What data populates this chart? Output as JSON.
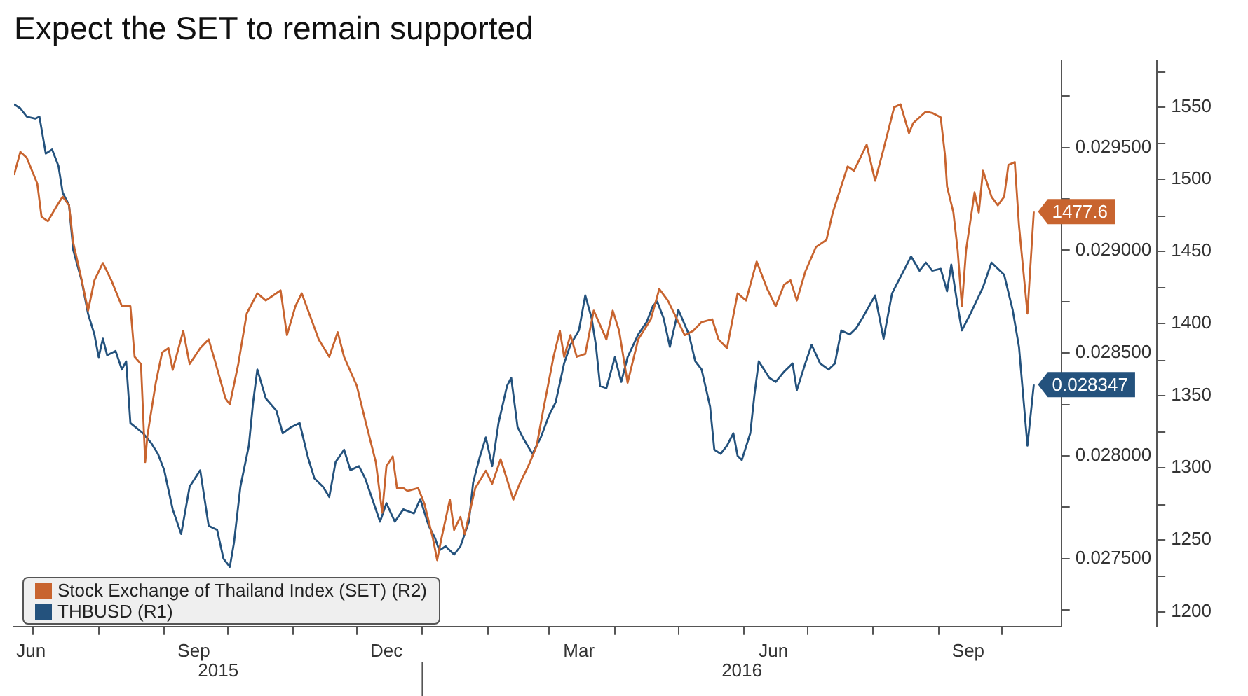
{
  "chart_data": {
    "type": "line",
    "title": "Expect the SET to remain supported",
    "legend": "bottom left",
    "grid": false,
    "marker": "none",
    "line_style": "solid",
    "series": [
      {
        "name": "Stock Exchange of Thailand Index (SET) (R2)",
        "color": "#c8642f",
        "axis": "y2",
        "x": [
          "2015-06-22",
          "2015-06-25",
          "2015-06-28",
          "2015-07-03",
          "2015-07-05",
          "2015-07-08",
          "2015-07-12",
          "2015-07-15",
          "2015-07-18",
          "2015-07-20",
          "2015-07-24",
          "2015-07-27",
          "2015-07-30",
          "2015-08-03",
          "2015-08-07",
          "2015-08-12",
          "2015-08-16",
          "2015-08-18",
          "2015-08-21",
          "2015-08-23",
          "2015-08-24",
          "2015-08-28",
          "2015-08-31",
          "2015-09-03",
          "2015-09-05",
          "2015-09-10",
          "2015-09-13",
          "2015-09-18",
          "2015-09-22",
          "2015-09-25",
          "2015-09-30",
          "2015-10-02",
          "2015-10-06",
          "2015-10-10",
          "2015-10-15",
          "2015-10-19",
          "2015-10-26",
          "2015-10-29",
          "2015-11-02",
          "2015-11-05",
          "2015-11-08",
          "2015-11-13",
          "2015-11-18",
          "2015-11-22",
          "2015-11-25",
          "2015-12-01",
          "2015-12-05",
          "2015-12-10",
          "2015-12-13",
          "2015-12-15",
          "2015-12-18",
          "2015-12-20",
          "2015-12-23",
          "2015-12-25",
          "2015-12-30",
          "2016-01-02",
          "2016-01-06",
          "2016-01-08",
          "2016-01-10",
          "2016-01-14",
          "2016-01-16",
          "2016-01-19",
          "2016-01-21",
          "2016-01-26",
          "2016-01-31",
          "2016-02-03",
          "2016-02-07",
          "2016-02-13",
          "2016-02-16",
          "2016-02-20",
          "2016-02-24",
          "2016-02-27",
          "2016-03-03",
          "2016-03-06",
          "2016-03-08",
          "2016-03-11",
          "2016-03-14",
          "2016-03-18",
          "2016-03-22",
          "2016-03-28",
          "2016-03-31",
          "2016-04-03",
          "2016-04-07",
          "2016-04-12",
          "2016-04-18",
          "2016-04-22",
          "2016-04-26",
          "2016-04-29",
          "2016-05-04",
          "2016-05-08",
          "2016-05-12",
          "2016-05-17",
          "2016-05-20",
          "2016-05-24",
          "2016-05-29",
          "2016-06-02",
          "2016-06-07",
          "2016-06-12",
          "2016-06-16",
          "2016-06-20",
          "2016-06-23",
          "2016-06-26",
          "2016-06-30",
          "2016-07-05",
          "2016-07-10",
          "2016-07-13",
          "2016-07-20",
          "2016-07-23",
          "2016-07-29",
          "2016-08-02",
          "2016-08-06",
          "2016-08-11",
          "2016-08-14",
          "2016-08-18",
          "2016-08-20",
          "2016-08-26",
          "2016-08-29",
          "2016-09-02",
          "2016-09-04",
          "2016-09-05",
          "2016-09-08",
          "2016-09-10",
          "2016-09-12",
          "2016-09-14",
          "2016-09-18",
          "2016-09-20",
          "2016-09-22",
          "2016-09-26",
          "2016-09-29",
          "2016-10-02",
          "2016-10-04",
          "2016-10-07",
          "2016-10-09",
          "2016-10-13",
          "2016-10-16"
        ],
        "values": [
          1503,
          1519,
          1515,
          1497,
          1474,
          1471,
          1481,
          1488,
          1482,
          1456,
          1430,
          1409,
          1430,
          1442,
          1430,
          1412,
          1412,
          1377,
          1372,
          1304,
          1322,
          1359,
          1380,
          1383,
          1368,
          1395,
          1372,
          1383,
          1389,
          1374,
          1348,
          1344,
          1372,
          1407,
          1421,
          1416,
          1423,
          1392,
          1412,
          1421,
          1409,
          1389,
          1377,
          1394,
          1377,
          1357,
          1333,
          1304,
          1269,
          1301,
          1308,
          1286,
          1286,
          1284,
          1286,
          1275,
          1251,
          1236,
          1251,
          1278,
          1257,
          1266,
          1254,
          1286,
          1298,
          1289,
          1306,
          1278,
          1289,
          1301,
          1315,
          1339,
          1377,
          1395,
          1377,
          1392,
          1377,
          1379,
          1409,
          1389,
          1409,
          1395,
          1359,
          1389,
          1403,
          1424,
          1416,
          1407,
          1392,
          1395,
          1401,
          1403,
          1389,
          1383,
          1421,
          1416,
          1443,
          1424,
          1412,
          1427,
          1430,
          1416,
          1436,
          1453,
          1458,
          1477,
          1509,
          1506,
          1524,
          1499,
          1521,
          1550,
          1552,
          1532,
          1539,
          1547,
          1546,
          1543,
          1517,
          1495,
          1477,
          1451,
          1412,
          1451,
          1491,
          1477,
          1506,
          1488,
          1482,
          1488,
          1510,
          1512,
          1468,
          1407,
          1477.6
        ],
        "value_labels": [
          null,
          null,
          null,
          null,
          null,
          null,
          null,
          null,
          null,
          null,
          null,
          null,
          null,
          null,
          null,
          null,
          null,
          null,
          null,
          null,
          null,
          null,
          null,
          null,
          null,
          null,
          null,
          null,
          null,
          null,
          null,
          null,
          null,
          null,
          null,
          null,
          null,
          null,
          null,
          null,
          null,
          null,
          null,
          null,
          null,
          null,
          null,
          null,
          null,
          null,
          null,
          null,
          null,
          null,
          null,
          null,
          null,
          null,
          null,
          null,
          null,
          null,
          null,
          null,
          null,
          null,
          null,
          null,
          null,
          null,
          null,
          null,
          null,
          null,
          null,
          null,
          null,
          null,
          null,
          null,
          null,
          null,
          null,
          null,
          null,
          null,
          null,
          null,
          null,
          null,
          null,
          null,
          null,
          null,
          null,
          null,
          null,
          null,
          null,
          null,
          null,
          null,
          null,
          null,
          null,
          null,
          null,
          null,
          null,
          null,
          null,
          null,
          null,
          null,
          null,
          null,
          null,
          null,
          null,
          null,
          null,
          null,
          null,
          null,
          null,
          null,
          null,
          null,
          null,
          null,
          null,
          null,
          null,
          null,
          "1477.6"
        ]
      },
      {
        "name": "THBUSD (R1)",
        "color": "#24527d",
        "x": [
          "2015-06-22",
          "2015-06-25",
          "2015-06-28",
          "2015-07-02",
          "2015-07-04",
          "2015-07-07",
          "2015-07-10",
          "2015-07-13",
          "2015-07-15",
          "2015-07-18",
          "2015-07-20",
          "2015-07-24",
          "2015-07-27",
          "2015-07-30",
          "2015-08-01",
          "2015-08-03",
          "2015-08-05",
          "2015-08-09",
          "2015-08-12",
          "2015-08-14",
          "2015-08-16",
          "2015-08-22",
          "2015-08-26",
          "2015-08-29",
          "2015-09-01",
          "2015-09-05",
          "2015-09-09",
          "2015-09-13",
          "2015-09-18",
          "2015-09-22",
          "2015-09-26",
          "2015-09-29",
          "2015-10-02",
          "2015-10-04",
          "2015-10-07",
          "2015-10-11",
          "2015-10-13",
          "2015-10-15",
          "2015-10-19",
          "2015-10-24",
          "2015-10-27",
          "2015-10-31",
          "2015-11-04",
          "2015-11-08",
          "2015-11-11",
          "2015-11-15",
          "2015-11-18",
          "2015-11-21",
          "2015-11-25",
          "2015-11-28",
          "2015-12-02",
          "2015-12-05",
          "2015-12-08",
          "2015-12-12",
          "2015-12-15",
          "2015-12-19",
          "2015-12-23",
          "2015-12-28",
          "2015-12-31",
          "2016-01-04",
          "2016-01-07",
          "2016-01-09",
          "2016-01-12",
          "2016-01-16",
          "2016-01-19",
          "2016-01-23",
          "2016-01-25",
          "2016-01-28",
          "2016-01-31",
          "2016-02-03",
          "2016-02-06",
          "2016-02-10",
          "2016-02-12",
          "2016-02-15",
          "2016-02-18",
          "2016-02-22",
          "2016-02-26",
          "2016-03-01",
          "2016-03-04",
          "2016-03-08",
          "2016-03-11",
          "2016-03-15",
          "2016-03-18",
          "2016-03-21",
          "2016-03-23",
          "2016-03-25",
          "2016-03-28",
          "2016-04-01",
          "2016-04-04",
          "2016-04-07",
          "2016-04-12",
          "2016-04-16",
          "2016-04-19",
          "2016-04-21",
          "2016-04-24",
          "2016-04-27",
          "2016-05-01",
          "2016-05-06",
          "2016-05-09",
          "2016-05-12",
          "2016-05-16",
          "2016-05-18",
          "2016-05-21",
          "2016-05-24",
          "2016-05-27",
          "2016-05-29",
          "2016-05-31",
          "2016-06-04",
          "2016-06-06",
          "2016-06-08",
          "2016-06-13",
          "2016-06-16",
          "2016-06-20",
          "2016-06-24",
          "2016-06-26",
          "2016-06-30",
          "2016-07-03",
          "2016-07-07",
          "2016-07-11",
          "2016-07-14",
          "2016-07-17",
          "2016-07-21",
          "2016-07-24",
          "2016-07-27",
          "2016-08-02",
          "2016-08-06",
          "2016-08-10",
          "2016-08-13",
          "2016-08-16",
          "2016-08-19",
          "2016-08-23",
          "2016-08-26",
          "2016-08-29",
          "2016-09-02",
          "2016-09-05",
          "2016-09-07",
          "2016-09-10",
          "2016-09-12",
          "2016-09-16",
          "2016-09-22",
          "2016-09-26",
          "2016-09-29",
          "2016-10-02",
          "2016-10-06",
          "2016-10-09",
          "2016-10-13",
          "2016-10-16"
        ],
        "values": [
          0.02971,
          0.02969,
          0.02965,
          0.02964,
          0.02965,
          0.02947,
          0.02949,
          0.02941,
          0.02928,
          0.02922,
          0.029,
          0.02885,
          0.02869,
          0.02859,
          0.02848,
          0.02857,
          0.02849,
          0.02851,
          0.02842,
          0.02846,
          0.02816,
          0.02811,
          0.02806,
          0.02801,
          0.02793,
          0.02774,
          0.02762,
          0.02785,
          0.02793,
          0.02766,
          0.02764,
          0.0275,
          0.02746,
          0.02758,
          0.02785,
          0.02805,
          0.02826,
          0.02842,
          0.02828,
          0.02822,
          0.02811,
          0.02814,
          0.02816,
          0.02799,
          0.02789,
          0.02785,
          0.0278,
          0.02797,
          0.02803,
          0.02793,
          0.02795,
          0.02789,
          0.0278,
          0.02768,
          0.02777,
          0.02768,
          0.02774,
          0.02772,
          0.02779,
          0.02766,
          0.0276,
          0.02754,
          0.02756,
          0.02752,
          0.02756,
          0.02768,
          0.02787,
          0.02799,
          0.02809,
          0.02795,
          0.02816,
          0.02834,
          0.02838,
          0.02814,
          0.02808,
          0.02801,
          0.02809,
          0.0282,
          0.02826,
          0.02845,
          0.02854,
          0.02861,
          0.02878,
          0.02867,
          0.02854,
          0.02834,
          0.02833,
          0.02848,
          0.02836,
          0.02848,
          0.02859,
          0.02865,
          0.02873,
          0.02875,
          0.02867,
          0.02853,
          0.02871,
          0.02859,
          0.02846,
          0.02842,
          0.02824,
          0.02803,
          0.02801,
          0.02805,
          0.02811,
          0.028,
          0.02798,
          0.02811,
          0.0283,
          0.02846,
          0.02838,
          0.02836,
          0.02841,
          0.02845,
          0.02832,
          0.02845,
          0.02854,
          0.02845,
          0.02842,
          0.02845,
          0.02861,
          0.02859,
          0.02862,
          0.02867,
          0.02878,
          0.02857,
          0.02879,
          0.02885,
          0.02891,
          0.02897,
          0.0289,
          0.02894,
          0.0289,
          0.02891,
          0.0288,
          0.02893,
          0.02873,
          0.02861,
          0.02869,
          0.02882,
          0.02894,
          0.02891,
          0.02888,
          0.02871,
          0.02853,
          0.02805,
          0.028347
        ],
        "value_labels": [
          null,
          null,
          null,
          null,
          null,
          null,
          null,
          null,
          null,
          null,
          null,
          null,
          null,
          null,
          null,
          null,
          null,
          null,
          null,
          null,
          null,
          null,
          null,
          null,
          null,
          null,
          null,
          null,
          null,
          null,
          null,
          null,
          null,
          null,
          null,
          null,
          null,
          null,
          null,
          null,
          null,
          null,
          null,
          null,
          null,
          null,
          null,
          null,
          null,
          null,
          null,
          null,
          null,
          null,
          null,
          null,
          null,
          null,
          null,
          null,
          null,
          null,
          null,
          null,
          null,
          null,
          null,
          null,
          null,
          null,
          null,
          null,
          null,
          null,
          null,
          null,
          null,
          null,
          null,
          null,
          null,
          null,
          null,
          null,
          null,
          null,
          null,
          null,
          null,
          null,
          null,
          null,
          null,
          null,
          null,
          null,
          null,
          null,
          null,
          null,
          null,
          null,
          null,
          null,
          null,
          null,
          null,
          null,
          null,
          null,
          null,
          null,
          null,
          null,
          null,
          null,
          null,
          null,
          null,
          null,
          null,
          null,
          null,
          null,
          null,
          null,
          null,
          null,
          null,
          null,
          null,
          null,
          null,
          null,
          null,
          null,
          null,
          null,
          null,
          null,
          null,
          null,
          null,
          null,
          null,
          null,
          "0.028347"
        ]
      }
    ],
    "xlim": [
      "2015-06-22",
      "2016-10-29"
    ],
    "xticks": [
      {
        "value": "2015-06-30",
        "label": "Jun"
      },
      {
        "value": "2015-07-01",
        "label": null
      },
      {
        "value": "2015-08-01",
        "label": null
      },
      {
        "value": "2015-09-01",
        "label": null
      },
      {
        "value": "2015-09-15",
        "label": "Sep"
      },
      {
        "value": "2015-10-01",
        "label": null
      },
      {
        "value": "2015-11-01",
        "label": null
      },
      {
        "value": "2015-12-01",
        "label": null
      },
      {
        "value": "2015-12-15",
        "label": "Dec"
      },
      {
        "value": "2016-01-01",
        "label": null
      },
      {
        "value": "2016-02-01",
        "label": null
      },
      {
        "value": "2016-03-01",
        "label": null
      },
      {
        "value": "2016-03-15",
        "label": "Mar"
      },
      {
        "value": "2016-04-01",
        "label": null
      },
      {
        "value": "2016-05-01",
        "label": null
      },
      {
        "value": "2016-06-01",
        "label": null
      },
      {
        "value": "2016-06-15",
        "label": "Jun"
      },
      {
        "value": "2016-07-01",
        "label": null
      },
      {
        "value": "2016-08-01",
        "label": null
      },
      {
        "value": "2016-09-01",
        "label": null
      },
      {
        "value": "2016-09-15",
        "label": "Sep"
      },
      {
        "value": "2016-10-01",
        "label": null
      }
    ],
    "ylim": [
      0.02717,
      0.02992
    ],
    "yticks": [
      {
        "value": 0.02725,
        "label": null
      },
      {
        "value": 0.0275,
        "label": "0.027500"
      },
      {
        "value": 0.02775,
        "label": null
      },
      {
        "value": 0.028,
        "label": "0.028000"
      },
      {
        "value": 0.02825,
        "label": null
      },
      {
        "value": 0.0285,
        "label": "0.028500"
      },
      {
        "value": 0.02875,
        "label": null
      },
      {
        "value": 0.029,
        "label": "0.029000"
      },
      {
        "value": 0.02925,
        "label": null
      },
      {
        "value": 0.0295,
        "label": "0.029500"
      },
      {
        "value": 0.02975,
        "label": null
      }
    ],
    "y2lim": [
      1190,
      1582
    ],
    "y2ticks": [
      1200,
      1250,
      1300,
      1350,
      1400,
      1450,
      1500,
      1550
    ],
    "annotations": [
      "2015",
      "2016"
    ]
  }
}
